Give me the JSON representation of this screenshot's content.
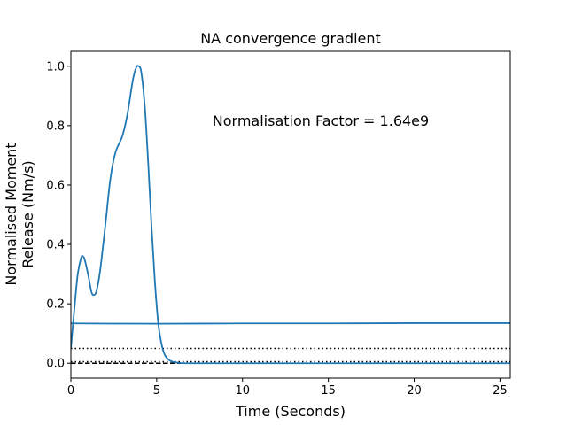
{
  "chart_data": {
    "type": "line",
    "title": "NA convergence gradient",
    "xlabel": "Time (Seconds)",
    "ylabel_line1": "Normalised Moment",
    "ylabel_line2": "Release (Nm/s)",
    "annotation": "Normalisation Factor = 1.64e9",
    "xlim": [
      0,
      25.6
    ],
    "ylim": [
      -0.05,
      1.05
    ],
    "xticks": [
      0,
      5,
      10,
      15,
      20,
      25
    ],
    "yticks": [
      0.0,
      0.2,
      0.4,
      0.6,
      0.8,
      1.0
    ],
    "xtick_labels": [
      "0",
      "5",
      "10",
      "15",
      "20",
      "25"
    ],
    "ytick_labels": [
      "0.0",
      "0.2",
      "0.4",
      "0.6",
      "0.8",
      "1.0"
    ],
    "grid": false,
    "colors": {
      "series": "#1f77b4",
      "reference": "#000000"
    },
    "series": [
      {
        "x": [
          0,
          0.2,
          0.4,
          0.6,
          0.7,
          0.8,
          1.0,
          1.2,
          1.35,
          1.5,
          1.7,
          2.0,
          2.3,
          2.6,
          3.0,
          3.3,
          3.6,
          3.8,
          3.95,
          4.1,
          4.3,
          4.5,
          4.7,
          4.9,
          5.1,
          5.3,
          5.5,
          5.8,
          6.2,
          7,
          10,
          15,
          20,
          25.6
        ],
        "y": [
          0.05,
          0.18,
          0.3,
          0.355,
          0.36,
          0.35,
          0.3,
          0.24,
          0.23,
          0.245,
          0.31,
          0.46,
          0.62,
          0.71,
          0.765,
          0.84,
          0.95,
          0.995,
          1.0,
          0.98,
          0.87,
          0.68,
          0.46,
          0.27,
          0.13,
          0.06,
          0.025,
          0.008,
          0.002,
          0.0,
          0.0,
          0.0,
          0.0,
          0.0
        ]
      },
      {
        "x": [
          0,
          5,
          10,
          15,
          20,
          25.6
        ],
        "y": [
          0.134,
          0.133,
          0.134,
          0.134,
          0.135,
          0.135
        ]
      }
    ],
    "reference_lines": [
      {
        "style": "dotted",
        "y": 0.05
      },
      {
        "style": "dotted",
        "y": 0.005
      },
      {
        "style": "dashed",
        "y": 0.0
      }
    ]
  }
}
